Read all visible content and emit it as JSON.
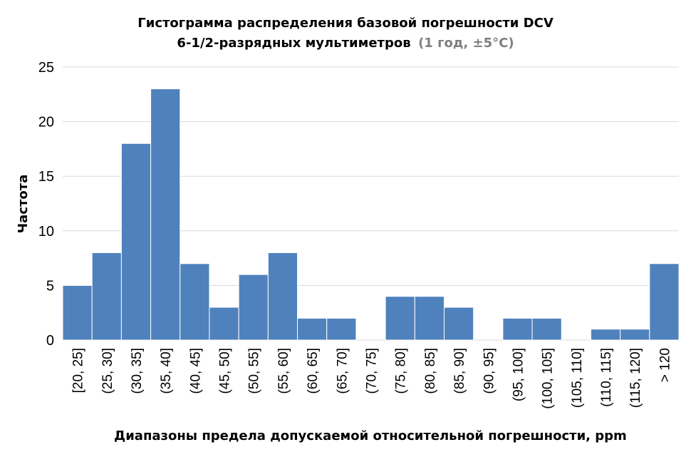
{
  "chart_data": {
    "type": "bar",
    "title_line1": "Гистограмма распределения базовой погрешности DCV",
    "title_line2_main": "6-1/2-разрядных мультиметров",
    "title_line2_muted": "(1 год, ±5°C)",
    "xlabel": "Диапазоны предела допускаемой относительной погрешности, ppm",
    "ylabel": "Частота",
    "categories": [
      "[20, 25]",
      "(25, 30]",
      "(30, 35]",
      "(35, 40]",
      "(40, 45]",
      "(45, 50]",
      "(50, 55]",
      "(55, 60]",
      "(60, 65]",
      "(65, 70]",
      "(70, 75]",
      "(75, 80]",
      "(80, 85]",
      "(85, 90]",
      "(90, 95]",
      "(95, 100]",
      "(100, 105]",
      "(105, 110]",
      "(110, 115]",
      "(115, 120]",
      "> 120"
    ],
    "values": [
      5,
      8,
      18,
      23,
      7,
      3,
      6,
      8,
      2,
      2,
      0,
      4,
      4,
      3,
      0,
      2,
      2,
      0,
      1,
      1,
      7
    ],
    "ylim": [
      0,
      25
    ],
    "yticks": [
      0,
      5,
      10,
      15,
      20,
      25
    ],
    "grid": true,
    "bar_color": "#4f81bd",
    "grid_color": "#d9d9d9"
  }
}
